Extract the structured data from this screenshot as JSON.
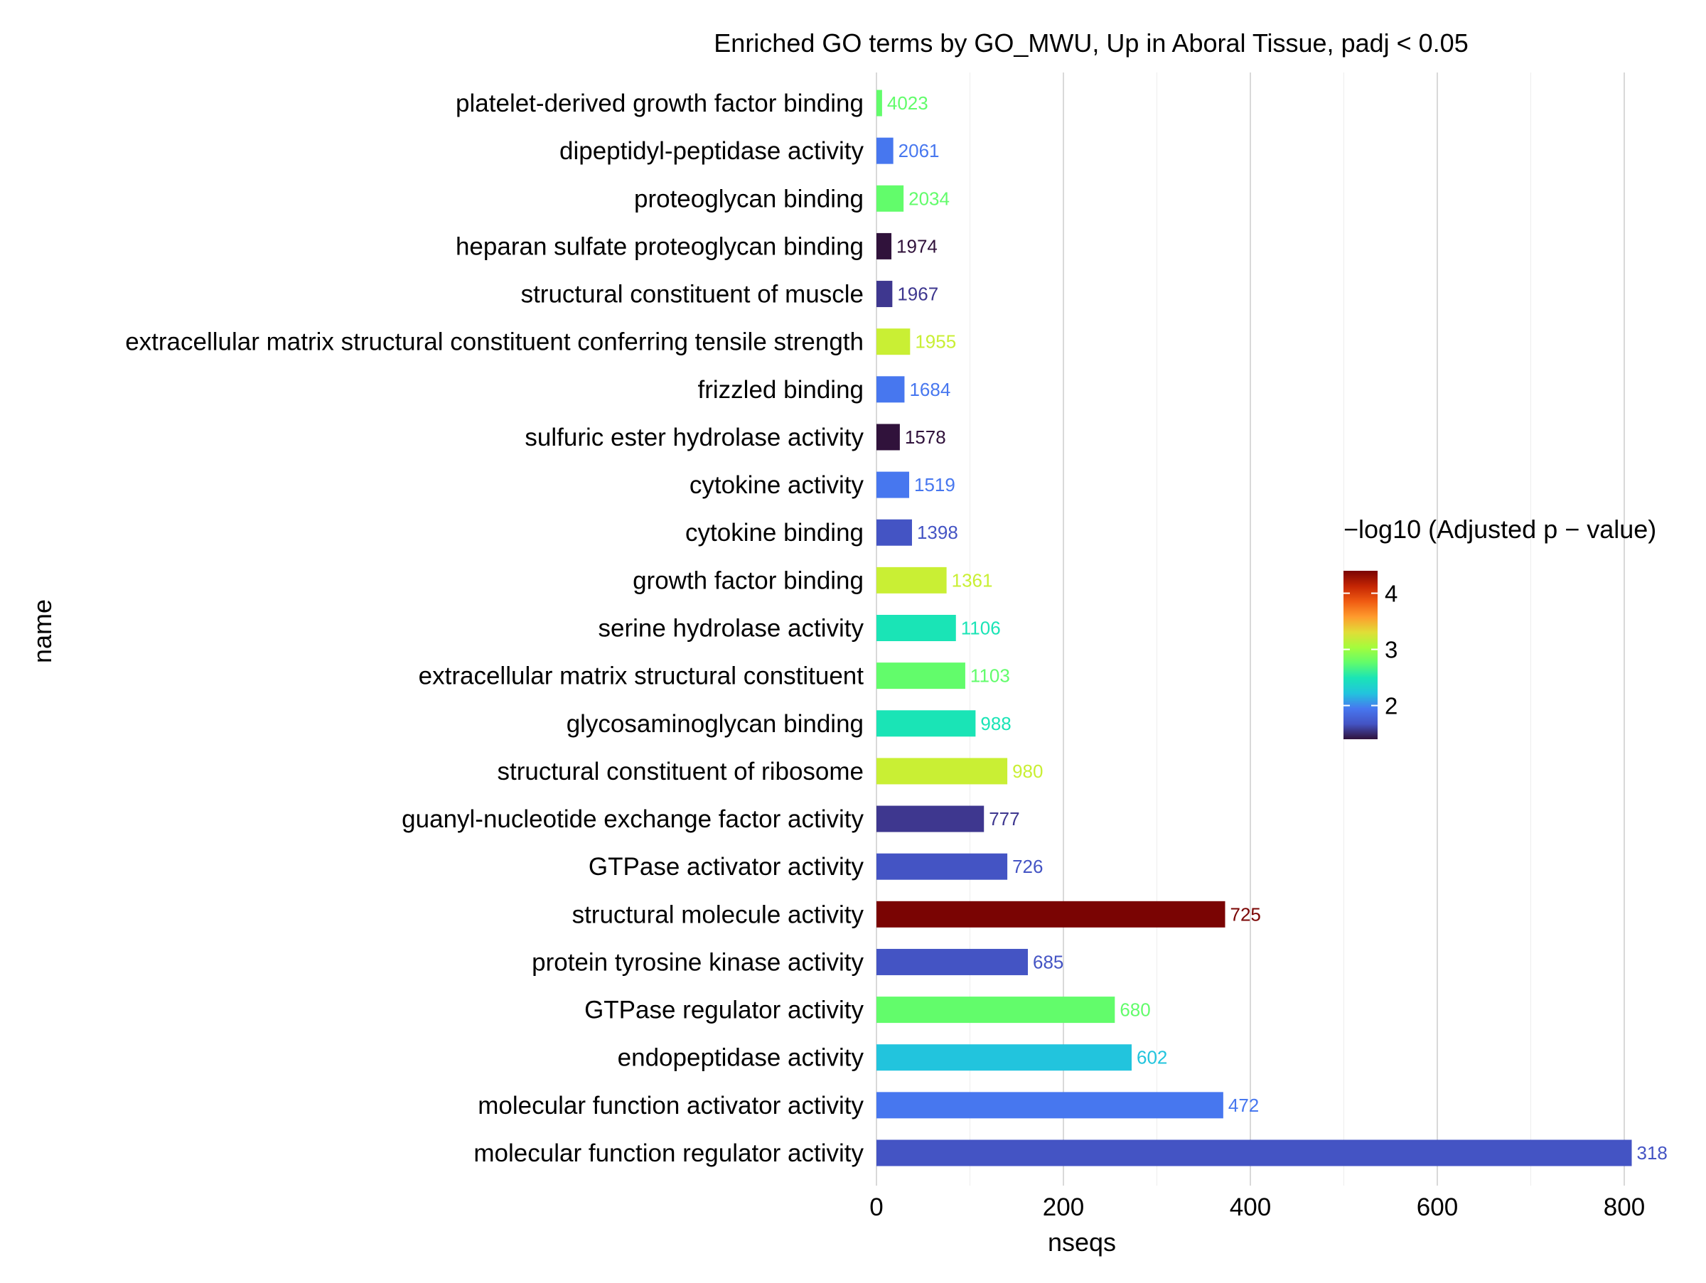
{
  "chart_data": {
    "type": "bar",
    "orientation": "horizontal",
    "title": "Enriched GO terms by GO_MWU, Up in Aboral Tissue, padj < 0.05",
    "xlabel": "nseqs",
    "ylabel": "name",
    "xlim": [
      0,
      830
    ],
    "xticks": [
      0,
      200,
      400,
      600,
      800
    ],
    "grid": true,
    "legend_position": "right",
    "legend": {
      "title": "−log10 (Adjusted p − value)",
      "min": 1.4,
      "max": 4.4,
      "ticks": [
        2,
        3,
        4
      ],
      "colormap": "turbo"
    },
    "categories": [
      "platelet-derived growth factor binding",
      "dipeptidyl-peptidase activity",
      "proteoglycan binding",
      "heparan sulfate proteoglycan binding",
      "structural constituent of muscle",
      "extracellular matrix structural constituent conferring tensile strength",
      "frizzled binding",
      "sulfuric ester hydrolase activity",
      "cytokine activity",
      "cytokine binding",
      "growth factor binding",
      "serine hydrolase activity",
      "extracellular matrix structural constituent",
      "glycosaminoglycan binding",
      "structural constituent of ribosome",
      "guanyl-nucleotide exchange factor activity",
      "GTPase activator activity",
      "structural molecule activity",
      "protein tyrosine kinase activity",
      "GTPase regulator activity",
      "endopeptidase activity",
      "molecular function activator activity",
      "molecular function regulator activity"
    ],
    "values": [
      6,
      18,
      29,
      16,
      17,
      36,
      30,
      25,
      35,
      38,
      75,
      85,
      95,
      106,
      140,
      115,
      140,
      373,
      162,
      255,
      273,
      371,
      808
    ],
    "bar_labels": [
      "4023",
      "2061",
      "2034",
      "1974",
      "1967",
      "1955",
      "1684",
      "1578",
      "1519",
      "1398",
      "1361",
      "1106",
      "1103",
      "988",
      "980",
      "777",
      "726",
      "725",
      "685",
      "680",
      "602",
      "472",
      "318"
    ],
    "colors": [
      "#62fc6b",
      "#4777ef",
      "#62fc6b",
      "#30123b",
      "#3e378f",
      "#c9ef34",
      "#4777ef",
      "#30123b",
      "#4777ef",
      "#4454c4",
      "#c9ef34",
      "#1ae4b6",
      "#62fc6b",
      "#1ae4b6",
      "#c9ef34",
      "#3e378f",
      "#4454c4",
      "#7a0403",
      "#4454c4",
      "#62fc6b",
      "#22c4dd",
      "#4777ef",
      "#4454c4"
    ]
  }
}
